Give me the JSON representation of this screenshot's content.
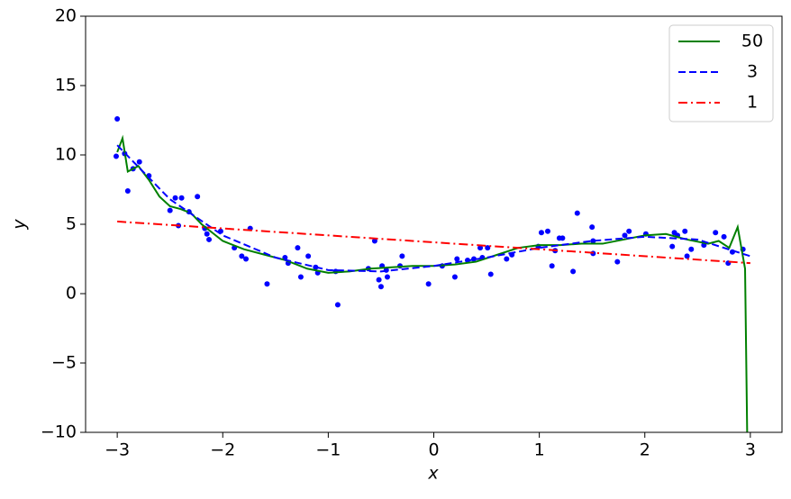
{
  "chart_data": {
    "type": "line",
    "x_label": "x",
    "y_label": "y",
    "xlim": [
      -3.3,
      3.3
    ],
    "ylim": [
      -10,
      20
    ],
    "xticks": [
      {
        "value": -3,
        "label": "−3"
      },
      {
        "value": -2,
        "label": "−2"
      },
      {
        "value": -1,
        "label": "−1"
      },
      0,
      1,
      2,
      3
    ],
    "yticks": [
      {
        "value": -10,
        "label": "−10"
      },
      {
        "value": -5,
        "label": "−5"
      },
      0,
      5,
      10,
      15,
      20
    ],
    "legend": "upper right",
    "points": {
      "color": "blue",
      "x": [
        -3.0,
        -3.01,
        -2.93,
        -2.9,
        -2.85,
        -2.79,
        -2.7,
        -2.5,
        -2.45,
        -2.42,
        -2.39,
        -2.32,
        -2.24,
        -2.17,
        -2.15,
        -2.13,
        -2.02,
        -1.89,
        -1.82,
        -1.78,
        -1.74,
        -1.58,
        -1.41,
        -1.38,
        -1.29,
        -1.26,
        -1.19,
        -1.12,
        -1.1,
        -0.93,
        -0.91,
        -0.62,
        -0.56,
        -0.52,
        -0.5,
        -0.49,
        -0.45,
        -0.44,
        -0.32,
        -0.3,
        -0.05,
        0.08,
        0.2,
        0.22,
        0.32,
        0.38,
        0.44,
        0.46,
        0.51,
        0.54,
        0.69,
        0.74,
        0.99,
        1.02,
        1.08,
        1.12,
        1.15,
        1.19,
        1.22,
        1.32,
        1.36,
        1.5,
        1.51,
        1.51,
        1.74,
        1.81,
        1.85,
        2.01,
        2.26,
        2.28,
        2.31,
        2.38,
        2.4,
        2.44,
        2.56,
        2.67,
        2.75,
        2.79,
        2.83,
        2.93
      ],
      "values": [
        12.6,
        9.9,
        10.1,
        7.4,
        9.0,
        9.5,
        8.5,
        6.0,
        6.9,
        4.9,
        6.9,
        5.9,
        7.0,
        4.7,
        4.3,
        3.9,
        4.5,
        3.3,
        2.7,
        2.5,
        4.7,
        0.7,
        2.6,
        2.2,
        3.3,
        1.2,
        2.7,
        1.9,
        1.5,
        1.6,
        -0.8,
        1.8,
        3.8,
        1.0,
        0.5,
        2.0,
        1.7,
        1.2,
        2.0,
        2.7,
        0.7,
        2.0,
        1.2,
        2.5,
        2.4,
        2.5,
        3.3,
        2.6,
        3.3,
        1.4,
        2.5,
        2.8,
        3.4,
        4.4,
        4.5,
        2.0,
        3.1,
        4.0,
        4.0,
        1.6,
        5.8,
        4.8,
        3.8,
        2.9,
        2.3,
        4.2,
        4.5,
        4.3,
        3.4,
        4.4,
        4.2,
        4.5,
        2.7,
        3.2,
        3.5,
        4.4,
        4.1,
        2.2,
        3.0,
        3.2
      ]
    },
    "series": [
      {
        "name": "50",
        "color": "green",
        "style": "solid",
        "x": [
          -3.0,
          -2.95,
          -2.9,
          -2.8,
          -2.7,
          -2.6,
          -2.5,
          -2.4,
          -2.3,
          -2.2,
          -2.1,
          -2.0,
          -1.8,
          -1.6,
          -1.4,
          -1.2,
          -1.0,
          -0.8,
          -0.6,
          -0.4,
          -0.2,
          0.0,
          0.2,
          0.4,
          0.6,
          0.8,
          1.0,
          1.2,
          1.4,
          1.6,
          1.8,
          2.0,
          2.2,
          2.4,
          2.6,
          2.7,
          2.8,
          2.88,
          2.95,
          2.97
        ],
        "values": [
          10.2,
          11.2,
          8.8,
          9.2,
          8.2,
          7.0,
          6.3,
          6.1,
          5.8,
          5.0,
          4.4,
          3.8,
          3.2,
          2.8,
          2.4,
          1.8,
          1.5,
          1.6,
          1.8,
          1.9,
          2.0,
          2.0,
          2.1,
          2.3,
          2.8,
          3.3,
          3.5,
          3.5,
          3.6,
          3.6,
          3.9,
          4.2,
          4.3,
          3.9,
          3.6,
          3.8,
          3.3,
          4.8,
          1.8,
          -10
        ]
      },
      {
        "name": "3",
        "color": "blue",
        "style": "dashed",
        "x": [
          -3.0,
          -2.5,
          -2.0,
          -1.5,
          -1.0,
          -0.5,
          0.0,
          0.5,
          1.0,
          1.5,
          2.0,
          2.5,
          3.0
        ],
        "values": [
          10.7,
          6.8,
          4.2,
          2.6,
          1.7,
          1.6,
          2.0,
          2.6,
          3.3,
          3.8,
          4.1,
          3.9,
          2.7
        ]
      },
      {
        "name": "1",
        "color": "red",
        "style": "dashdot",
        "x": [
          -3.0,
          3.0
        ],
        "values": [
          5.2,
          2.2
        ]
      }
    ]
  }
}
